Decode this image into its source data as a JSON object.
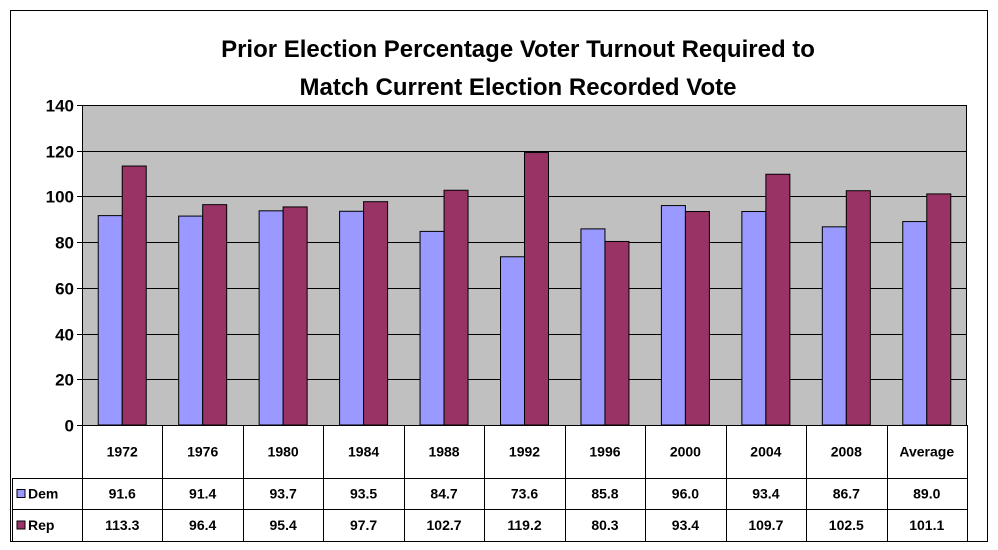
{
  "chart_data": {
    "type": "bar",
    "title_lines": [
      "Prior Election Percentage Voter Turnout Required to",
      "Match Current Election Recorded Vote"
    ],
    "categories": [
      "1972",
      "1976",
      "1980",
      "1984",
      "1988",
      "1992",
      "1996",
      "2000",
      "2004",
      "2008",
      "Average"
    ],
    "series": [
      {
        "name": "Dem",
        "color": "#9999ff",
        "values": [
          91.6,
          91.4,
          93.7,
          93.5,
          84.7,
          73.6,
          85.8,
          96.0,
          93.4,
          86.7,
          89.0
        ],
        "labels": [
          "91.6",
          "91.4",
          "93.7",
          "93.5",
          "84.7",
          "73.6",
          "85.8",
          "96.0",
          "93.4",
          "86.7",
          "89.0"
        ]
      },
      {
        "name": "Rep",
        "color": "#993366",
        "values": [
          113.3,
          96.4,
          95.4,
          97.7,
          102.7,
          119.2,
          80.3,
          93.4,
          109.7,
          102.5,
          101.1
        ],
        "labels": [
          "113.3",
          "96.4",
          "95.4",
          "97.7",
          "102.7",
          "119.2",
          "80.3",
          "93.4",
          "109.7",
          "102.5",
          "101.1"
        ]
      }
    ],
    "ylim": [
      0,
      140
    ],
    "yticks": [
      0,
      20,
      40,
      60,
      80,
      100,
      120,
      140
    ],
    "ytick_labels": [
      "0",
      "20",
      "40",
      "60",
      "80",
      "100",
      "120",
      "140"
    ],
    "grid": true,
    "plot_background": "#c0c0c0",
    "legend": "data-table"
  }
}
